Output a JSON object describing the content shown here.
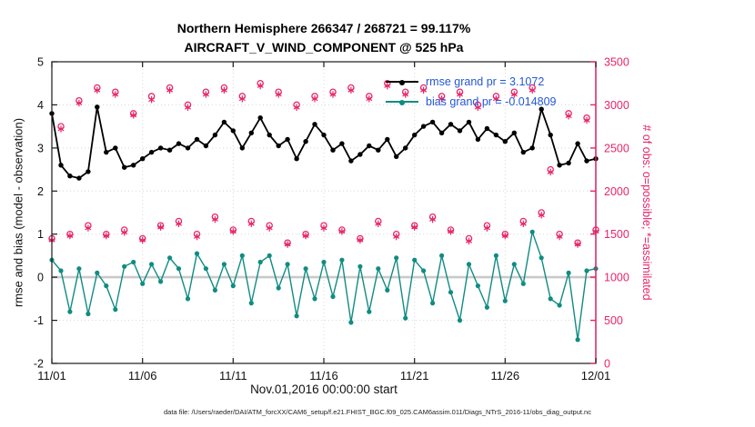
{
  "titles": {
    "line1": "Northern Hemisphere 266347 / 268721 = 99.117%",
    "line2": "AIRCRAFT_V_WIND_COMPONENT @ 525 hPa"
  },
  "legend": {
    "rmse_label": "rmse grand pr = 3.1072",
    "bias_label": "bias grand pr = -0.014809"
  },
  "footer": {
    "text": "data file: /Users/raeder/DAI/ATM_forcXX/CAM6_setup/f.e21.FHIST_BGC.f09_025.CAM6assim.011/Diags_NTrS_2016-11/obs_diag_output.nc"
  },
  "colors": {
    "rmse": "#000000",
    "bias": "#108c82",
    "obs": "#e8246a",
    "legend_text": "#2457d6",
    "grid": "#d8d8d8",
    "zero_line": "#c9c9c9",
    "axis": "#1a1a1a"
  },
  "chart_data": {
    "type": "line",
    "title": "Northern Hemisphere 266347 / 268721 = 99.117% | AIRCRAFT_V_WIND_COMPONENT @ 525 hPa",
    "xlabel": "Nov.01,2016 00:00:00 start",
    "ylabel_left": "rmse and bias (model - observation)",
    "ylabel_right": "# of obs: o=possible; *=assimilated",
    "grid": true,
    "legend_position": "upper right inside",
    "x_ticks": [
      "11/01",
      "11/06",
      "11/11",
      "11/16",
      "11/21",
      "11/26",
      "12/01"
    ],
    "x_tick_days": [
      0,
      5,
      10,
      15,
      20,
      25,
      30
    ],
    "xlim_days": [
      0,
      30
    ],
    "ylim_left": [
      -2,
      5
    ],
    "yticks_left": [
      -2,
      -1,
      0,
      1,
      2,
      3,
      4,
      5
    ],
    "ylim_right": [
      0,
      3500
    ],
    "yticks_right": [
      0,
      500,
      1000,
      1500,
      2000,
      2500,
      3000,
      3500
    ],
    "x_days": [
      0,
      0.5,
      1,
      1.5,
      2,
      2.5,
      3,
      3.5,
      4,
      4.5,
      5,
      5.5,
      6,
      6.5,
      7,
      7.5,
      8,
      8.5,
      9,
      9.5,
      10,
      10.5,
      11,
      11.5,
      12,
      12.5,
      13,
      13.5,
      14,
      14.5,
      15,
      15.5,
      16,
      16.5,
      17,
      17.5,
      18,
      18.5,
      19,
      19.5,
      20,
      20.5,
      21,
      21.5,
      22,
      22.5,
      23,
      23.5,
      24,
      24.5,
      25,
      25.5,
      26,
      26.5,
      27,
      27.5,
      28,
      28.5,
      29,
      29.5,
      30
    ],
    "series": [
      {
        "name": "rmse",
        "axis": "left",
        "marker": "filled-circle",
        "values": [
          3.8,
          2.6,
          2.35,
          2.3,
          2.45,
          3.95,
          2.9,
          3.0,
          2.55,
          2.6,
          2.75,
          2.9,
          3.0,
          2.95,
          3.1,
          3.0,
          3.2,
          3.05,
          3.3,
          3.6,
          3.4,
          3.0,
          3.35,
          3.7,
          3.3,
          3.05,
          3.2,
          2.75,
          3.15,
          3.55,
          3.3,
          2.95,
          3.1,
          2.7,
          2.85,
          3.05,
          2.95,
          3.2,
          2.8,
          3.0,
          3.3,
          3.5,
          3.6,
          3.35,
          3.55,
          3.4,
          3.6,
          3.2,
          3.45,
          3.3,
          3.15,
          3.35,
          2.9,
          3.0,
          3.9,
          3.3,
          2.6,
          2.65,
          3.1,
          2.7,
          2.75
        ]
      },
      {
        "name": "bias",
        "axis": "left",
        "marker": "filled-circle",
        "values": [
          0.4,
          0.15,
          -0.8,
          0.2,
          -0.85,
          0.1,
          -0.2,
          -0.75,
          0.25,
          0.35,
          -0.15,
          0.3,
          -0.1,
          0.45,
          0.2,
          -0.5,
          0.55,
          0.2,
          -0.3,
          0.3,
          -0.2,
          0.5,
          -0.6,
          0.35,
          0.5,
          -0.25,
          0.3,
          -0.9,
          0.2,
          -0.5,
          0.35,
          -0.45,
          0.4,
          -1.05,
          0.25,
          -0.8,
          0.2,
          -0.3,
          0.45,
          -0.95,
          0.4,
          0.15,
          -0.6,
          0.5,
          -0.35,
          -1.0,
          0.3,
          -0.2,
          -0.7,
          0.5,
          -0.55,
          0.3,
          -0.15,
          1.05,
          0.45,
          -0.5,
          -0.65,
          0.1,
          -1.45,
          0.15,
          0.2
        ]
      },
      {
        "name": "possible",
        "axis": "right",
        "marker": "o",
        "values": [
          1450,
          2750,
          1500,
          3050,
          1600,
          3200,
          1500,
          3150,
          1550,
          2900,
          1450,
          3100,
          1600,
          3200,
          1650,
          3000,
          1500,
          3150,
          1700,
          3200,
          1550,
          3100,
          1650,
          3250,
          1600,
          3150,
          1400,
          3000,
          1500,
          3100,
          1600,
          3150,
          1550,
          3200,
          1450,
          3100,
          1650,
          3250,
          1500,
          3150,
          1600,
          3200,
          1700,
          3100,
          1550,
          3150,
          1450,
          3000,
          1600,
          3100,
          1500,
          3150,
          1650,
          3200,
          1750,
          2250,
          1500,
          2900,
          1400,
          2850,
          1550
        ]
      },
      {
        "name": "assimilated",
        "axis": "right",
        "marker": "*",
        "values": [
          1430,
          2720,
          1480,
          3020,
          1570,
          3170,
          1480,
          3120,
          1520,
          2880,
          1430,
          3060,
          1580,
          3170,
          1620,
          2970,
          1470,
          3120,
          1670,
          3170,
          1530,
          3070,
          1620,
          3220,
          1570,
          3120,
          1380,
          2970,
          1480,
          3070,
          1570,
          3120,
          1530,
          3170,
          1430,
          3070,
          1620,
          3220,
          1470,
          3120,
          1580,
          3170,
          1670,
          3070,
          1530,
          3120,
          1420,
          2970,
          1570,
          3070,
          1480,
          3120,
          1620,
          3170,
          1720,
          2220,
          1470,
          2870,
          1380,
          2820,
          1530
        ]
      }
    ]
  }
}
